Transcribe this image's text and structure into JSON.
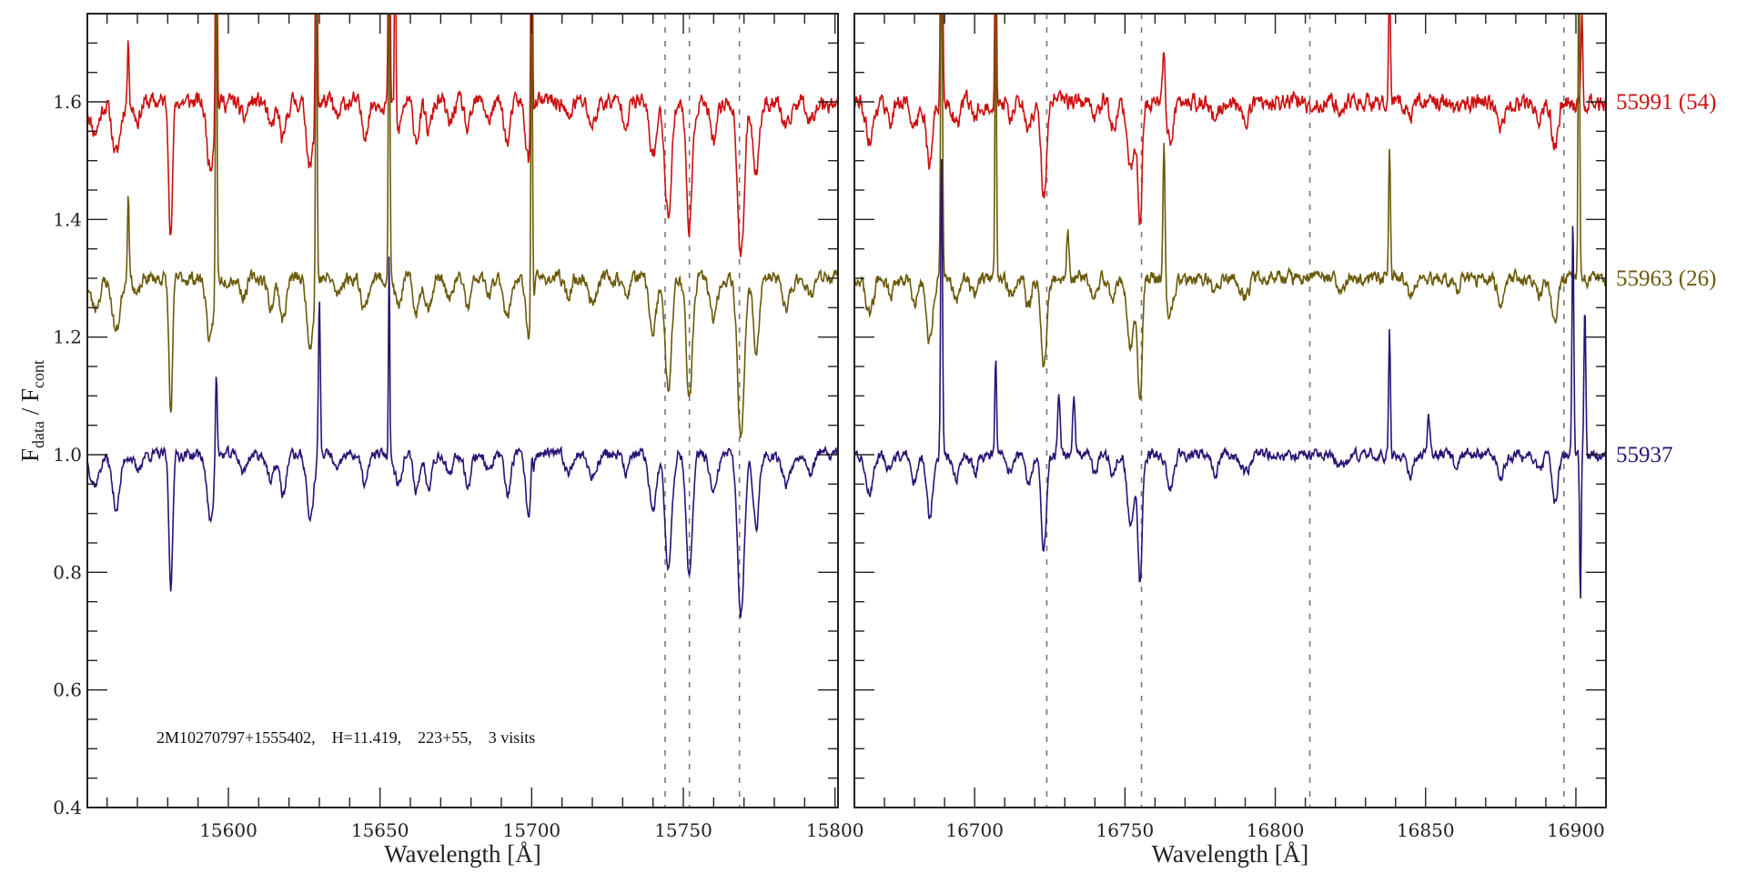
{
  "chart_data": {
    "type": "line",
    "title": "",
    "ylabel": {
      "main": "F",
      "sub1": "data",
      "sep": " / F",
      "sub2": "cont"
    },
    "ylim": [
      0.4,
      1.75
    ],
    "yticks": [
      0.4,
      0.6,
      0.8,
      1.0,
      1.2,
      1.4,
      1.6
    ],
    "ytick_labels": [
      "0.4",
      "0.6",
      "0.8",
      "1.0",
      "1.2",
      "1.4",
      "1.6"
    ],
    "yminor_step": 0.05,
    "annotation": "2M10270797+1555402,    H=11.419,    223+55,    3 visits",
    "colors": {
      "axis": "#222222",
      "dashed": "#777777"
    },
    "panels": [
      {
        "xlabel": "Wavelength [Å]",
        "xlim": [
          15553.5,
          15801
        ],
        "xticks": [
          15600,
          15650,
          15700,
          15750,
          15800
        ],
        "xtick_labels": [
          "15600",
          "15650",
          "15700",
          "15750",
          "15800"
        ],
        "xminor_step": 10,
        "dashed_lines": [
          15744,
          15752,
          15768.5
        ],
        "absorption_lines": [
          [
            15556,
            0.05,
            1.5
          ],
          [
            15563,
            0.09,
            1.3
          ],
          [
            15570,
            0.03,
            1
          ],
          [
            15581,
            0.23,
            0.6
          ],
          [
            15594,
            0.11,
            1.1
          ],
          [
            15605,
            0.03,
            1
          ],
          [
            15614,
            0.05,
            1
          ],
          [
            15618,
            0.07,
            1
          ],
          [
            15627,
            0.11,
            1.1
          ],
          [
            15636,
            0.03,
            1
          ],
          [
            15645,
            0.05,
            1.1
          ],
          [
            15656,
            0.05,
            1
          ],
          [
            15662,
            0.06,
            1
          ],
          [
            15666,
            0.05,
            1
          ],
          [
            15673,
            0.04,
            1
          ],
          [
            15679,
            0.05,
            1
          ],
          [
            15686,
            0.03,
            1
          ],
          [
            15692,
            0.07,
            1
          ],
          [
            15699,
            0.1,
            1
          ],
          [
            15712,
            0.03,
            1
          ],
          [
            15720,
            0.04,
            1.2
          ],
          [
            15731,
            0.03,
            1
          ],
          [
            15740,
            0.09,
            1.2
          ],
          [
            15745,
            0.19,
            1.1
          ],
          [
            15752,
            0.21,
            1
          ],
          [
            15760,
            0.07,
            1.2
          ],
          [
            15769,
            0.27,
            1.1
          ],
          [
            15774,
            0.12,
            1
          ],
          [
            15784,
            0.05,
            1.3
          ],
          [
            15792,
            0.03,
            1
          ]
        ]
      },
      {
        "xlabel": "Wavelength [Å]",
        "xlim": [
          16660,
          16910
        ],
        "xticks": [
          16700,
          16750,
          16800,
          16850,
          16900
        ],
        "xtick_labels": [
          "16700",
          "16750",
          "16800",
          "16850",
          "16900"
        ],
        "xminor_step": 10,
        "dashed_lines": [
          16724,
          16755.5,
          16811.5,
          16896
        ],
        "absorption_lines": [
          [
            16665,
            0.06,
            1.3
          ],
          [
            16672,
            0.03,
            1
          ],
          [
            16680,
            0.05,
            1
          ],
          [
            16685,
            0.11,
            1
          ],
          [
            16694,
            0.04,
            1
          ],
          [
            16700,
            0.03,
            1
          ],
          [
            16712,
            0.03,
            1
          ],
          [
            16718,
            0.05,
            1
          ],
          [
            16723,
            0.16,
            0.9
          ],
          [
            16740,
            0.03,
            1
          ],
          [
            16746,
            0.04,
            1
          ],
          [
            16752,
            0.12,
            1.2
          ],
          [
            16755,
            0.21,
            0.7
          ],
          [
            16765,
            0.06,
            1.2
          ],
          [
            16780,
            0.03,
            1
          ],
          [
            16790,
            0.03,
            1.5
          ],
          [
            16822,
            0.02,
            1.5
          ],
          [
            16845,
            0.03,
            1
          ],
          [
            16860,
            0.02,
            1
          ],
          [
            16875,
            0.04,
            1.2
          ],
          [
            16888,
            0.03,
            1
          ],
          [
            16893,
            0.08,
            1
          ]
        ]
      }
    ],
    "series": [
      {
        "name": "55991 (54)",
        "color": "#cc1010",
        "offset": 1.6,
        "depth_scale": 1.0,
        "noise": 0.014,
        "seed": 11,
        "emission": [
          [
            15567,
            0.1,
            0.3
          ],
          [
            15596,
            0.6,
            0.25
          ],
          [
            15629,
            0.6,
            0.25
          ],
          [
            15653,
            0.6,
            0.25
          ],
          [
            15655,
            0.5,
            0.2
          ],
          [
            15700,
            0.6,
            0.25
          ],
          [
            16689,
            0.6,
            0.3
          ],
          [
            16707,
            0.4,
            0.25
          ],
          [
            16763,
            0.1,
            0.4
          ],
          [
            16838,
            0.2,
            0.3
          ],
          [
            16902,
            0.15,
            0.3
          ]
        ]
      },
      {
        "name": "55963 (26)",
        "color": "#6b5a0a",
        "offset": 1.3,
        "depth_scale": 1.0,
        "noise": 0.011,
        "seed": 23,
        "emission": [
          [
            15567,
            0.15,
            0.3
          ],
          [
            15596,
            0.6,
            0.25
          ],
          [
            15629,
            0.6,
            0.25
          ],
          [
            15653,
            0.6,
            0.25
          ],
          [
            15700,
            0.6,
            0.25
          ],
          [
            16689,
            0.6,
            0.3
          ],
          [
            16707,
            0.5,
            0.25
          ],
          [
            16731,
            0.08,
            0.4
          ],
          [
            16763,
            0.25,
            0.35
          ],
          [
            16838,
            0.22,
            0.3
          ],
          [
            16901,
            0.6,
            0.25
          ]
        ]
      },
      {
        "name": "55937",
        "color": "#2a1275",
        "offset": 1.0,
        "depth_scale": 1.0,
        "noise": 0.009,
        "seed": 37,
        "emission": [
          [
            15596,
            0.16,
            0.3
          ],
          [
            15630,
            0.27,
            0.3
          ],
          [
            15653,
            0.35,
            0.2
          ],
          [
            15700,
            0.05,
            0.3
          ],
          [
            16689,
            0.5,
            0.3
          ],
          [
            16707,
            0.16,
            0.3
          ],
          [
            16728,
            0.1,
            0.4
          ],
          [
            16733,
            0.1,
            0.4
          ],
          [
            16838,
            0.21,
            0.3
          ],
          [
            16851,
            0.06,
            0.4
          ],
          [
            16899,
            0.4,
            0.3
          ],
          [
            16903,
            0.25,
            0.3
          ]
        ],
        "extra_absorption": [
          [
            16901.5,
            0.26,
            0.25
          ]
        ]
      }
    ]
  }
}
